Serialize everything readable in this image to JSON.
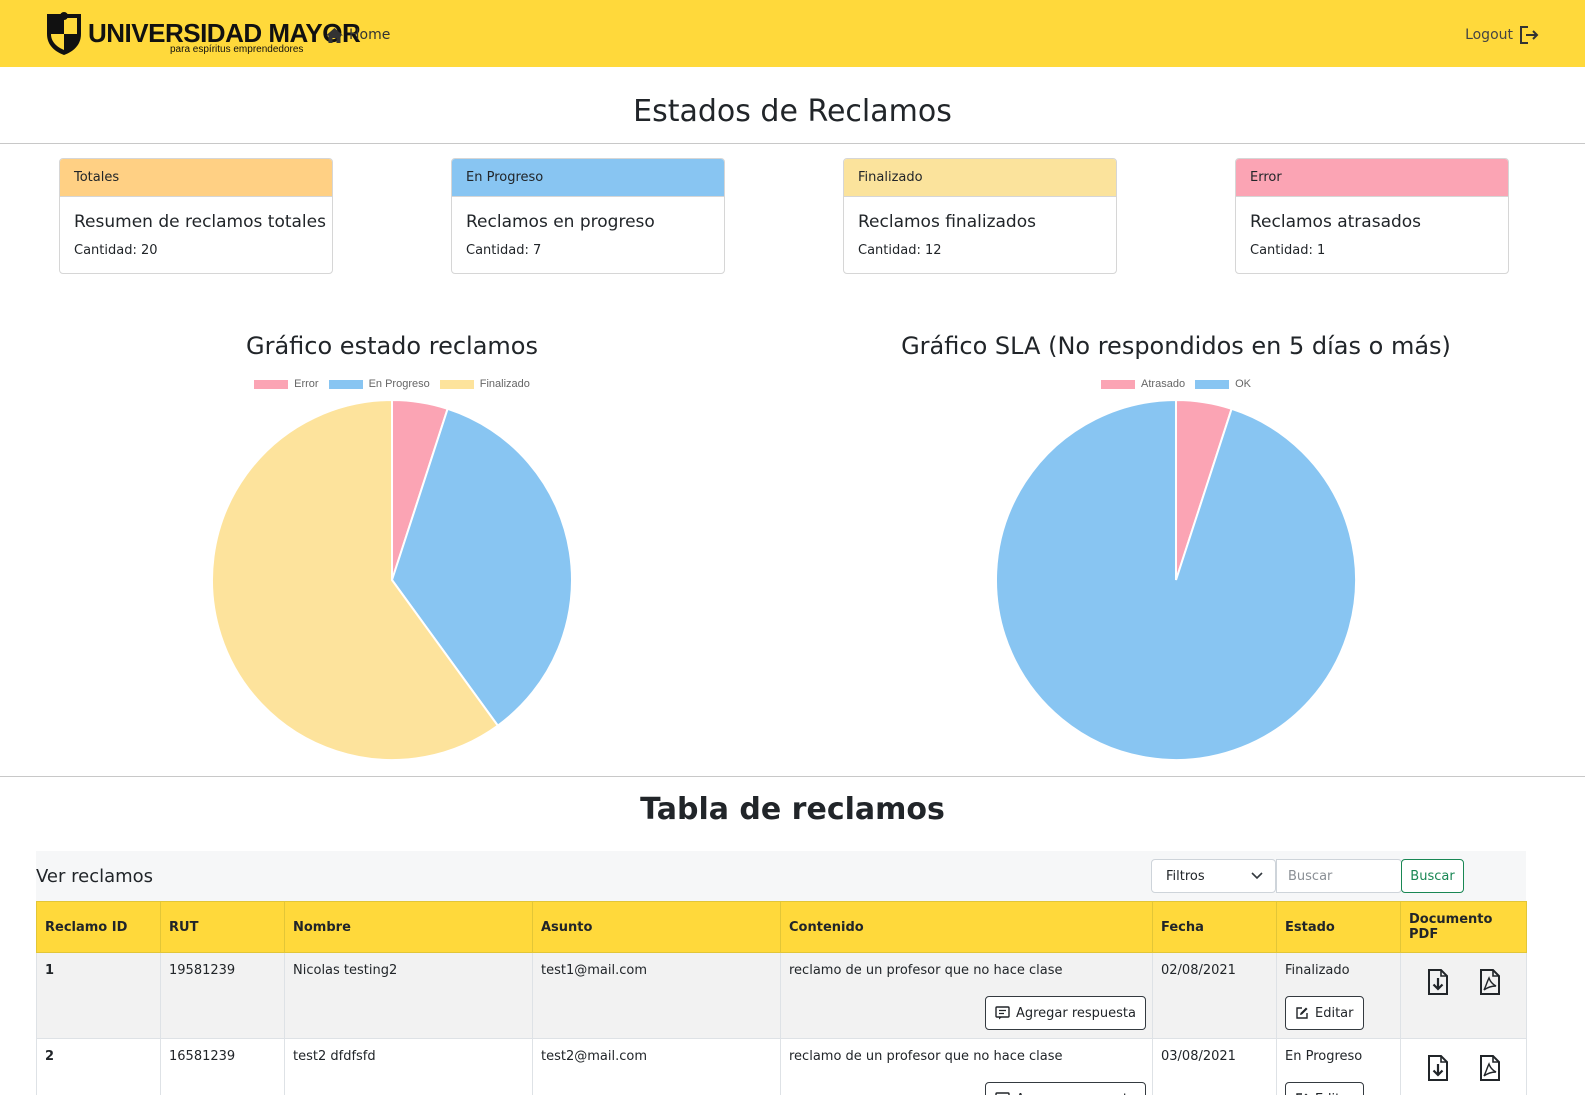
{
  "navbar": {
    "brand": "UNIVERSIDAD MAYOR",
    "tagline": "para espíritus emprendedores",
    "home_label": "Home",
    "logout_label": "Logout",
    "bg_color": "#ffd93b"
  },
  "page_title": "Estados de Reclamos",
  "cards": [
    {
      "header": "Totales",
      "title": "Resumen de reclamos totales",
      "text": "Cantidad: 20",
      "color": "#ffd084"
    },
    {
      "header": "En Progreso",
      "title": "Reclamos en progreso",
      "text": "Cantidad: 7",
      "color": "#88c5f2"
    },
    {
      "header": "Finalizado",
      "title": "Reclamos finalizados",
      "text": "Cantidad: 12",
      "color": "#fbe39c"
    },
    {
      "header": "Error",
      "title": "Reclamos atrasados",
      "text": "Cantidad: 1",
      "color": "#fba4b4"
    }
  ],
  "chart_data": [
    {
      "type": "pie",
      "title": "Gráfico estado reclamos",
      "legend_position": "top",
      "categories": [
        "Error",
        "En Progreso",
        "Finalizado"
      ],
      "values": [
        1,
        7,
        12
      ],
      "colors": [
        "#fba4b4",
        "#88c5f2",
        "#fde39c"
      ]
    },
    {
      "type": "pie",
      "title": "Gráfico SLA (No respondidos en 5 días o más)",
      "legend_position": "top",
      "categories": [
        "Atrasado",
        "OK"
      ],
      "values": [
        1,
        19
      ],
      "colors": [
        "#fba4b4",
        "#88c5f2"
      ]
    }
  ],
  "table_section": {
    "title": "Tabla de reclamos",
    "toolbar_label": "Ver reclamos",
    "filter_label": "Filtros",
    "search_placeholder": "Buscar",
    "search_button": "Buscar",
    "columns": [
      "Reclamo ID",
      "RUT",
      "Nombre",
      "Asunto",
      "Contenido",
      "Fecha",
      "Estado",
      "Documento PDF"
    ],
    "add_response_label": "Agregar respuesta",
    "edit_label": "Editar",
    "rows": [
      {
        "id": "1",
        "rut": "19581239",
        "nombre": "Nicolas testing2",
        "asunto": "test1@mail.com",
        "contenido": "reclamo de un profesor que no hace clase",
        "fecha": "02/08/2021",
        "estado": "Finalizado"
      },
      {
        "id": "2",
        "rut": "16581239",
        "nombre": "test2 dfdfsfd",
        "asunto": "test2@mail.com",
        "contenido": "reclamo de un profesor que no hace clase",
        "fecha": "03/08/2021",
        "estado": "En Progreso"
      }
    ]
  }
}
